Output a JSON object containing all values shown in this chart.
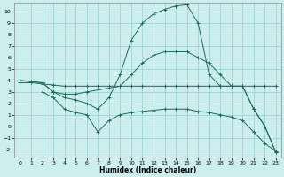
{
  "xlabel": "Humidex (Indice chaleur)",
  "bg_color": "#cceeee",
  "grid_color": "#99cccc",
  "line_color": "#1a6a5a",
  "xlim": [
    -0.5,
    23.5
  ],
  "ylim": [
    -2.7,
    10.8
  ],
  "xticks": [
    0,
    1,
    2,
    3,
    4,
    5,
    6,
    7,
    8,
    9,
    10,
    11,
    12,
    13,
    14,
    15,
    16,
    17,
    18,
    19,
    20,
    21,
    22,
    23
  ],
  "yticks": [
    -2,
    -1,
    0,
    1,
    2,
    3,
    4,
    5,
    6,
    7,
    8,
    9,
    10
  ],
  "line1_x": [
    0,
    1,
    2,
    3,
    4,
    5,
    6,
    7,
    8,
    9,
    10,
    11,
    12,
    13,
    14,
    15,
    16,
    17,
    18,
    19,
    20,
    21,
    22,
    23
  ],
  "line1_y": [
    3.8,
    3.8,
    3.7,
    3.6,
    3.5,
    3.5,
    3.5,
    3.5,
    3.5,
    3.5,
    3.5,
    3.5,
    3.5,
    3.5,
    3.5,
    3.5,
    3.5,
    3.5,
    3.5,
    3.5,
    3.5,
    3.5,
    3.5,
    3.5
  ],
  "line2_x": [
    0,
    1,
    2,
    3,
    4,
    5,
    6,
    9,
    10,
    11,
    12,
    13,
    14,
    15,
    16,
    17,
    18,
    19,
    20,
    21,
    22,
    23
  ],
  "line2_y": [
    4.0,
    3.9,
    3.8,
    3.0,
    2.8,
    2.8,
    3.0,
    3.5,
    4.5,
    5.5,
    6.2,
    6.5,
    6.5,
    6.5,
    6.0,
    5.5,
    4.5,
    3.5,
    3.5,
    1.5,
    0.0,
    -2.3
  ],
  "line3_x": [
    0,
    1,
    2,
    3,
    4,
    5,
    6,
    7,
    8,
    9,
    10,
    11,
    12,
    13,
    14,
    15,
    16,
    17,
    18,
    19,
    20,
    21,
    22,
    23
  ],
  "line3_y": [
    4.0,
    3.9,
    3.8,
    3.0,
    2.5,
    2.3,
    2.0,
    1.5,
    2.5,
    4.5,
    7.5,
    9.0,
    9.8,
    10.2,
    10.5,
    10.6,
    9.0,
    4.5,
    3.5,
    3.5,
    3.5,
    1.5,
    0.0,
    -2.3
  ],
  "line4_x": [
    2,
    3,
    4,
    5,
    6,
    7,
    8,
    9,
    10,
    11,
    12,
    13,
    14,
    15,
    16,
    17,
    18,
    19,
    20,
    21,
    22,
    23
  ],
  "line4_y": [
    3.0,
    2.5,
    1.5,
    1.2,
    1.0,
    -0.5,
    0.5,
    1.0,
    1.2,
    1.3,
    1.4,
    1.5,
    1.5,
    1.5,
    1.3,
    1.2,
    1.0,
    0.8,
    0.5,
    -0.5,
    -1.5,
    -2.2
  ]
}
